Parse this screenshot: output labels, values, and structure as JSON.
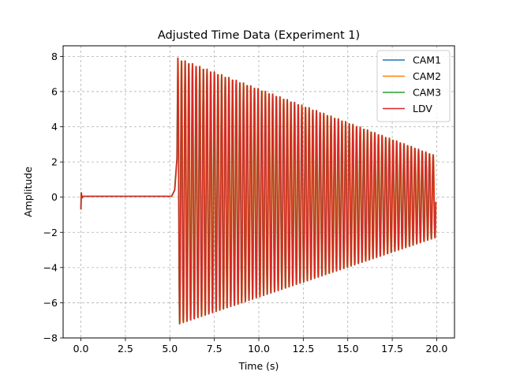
{
  "chart_data": {
    "type": "line",
    "title": "Adjusted Time Data (Experiment 1)",
    "xlabel": "Time (s)",
    "ylabel": "Amplitude",
    "xlim": [
      -1.0,
      21.0
    ],
    "ylim": [
      -8.0,
      8.6
    ],
    "x_ticks": [
      0.0,
      2.5,
      5.0,
      7.5,
      10.0,
      12.5,
      15.0,
      17.5,
      20.0
    ],
    "x_tick_labels": [
      "0.0",
      "2.5",
      "5.0",
      "7.5",
      "10.0",
      "12.5",
      "15.0",
      "17.5",
      "20.0"
    ],
    "y_ticks": [
      -8,
      -6,
      -4,
      -2,
      0,
      2,
      4,
      6,
      8
    ],
    "y_tick_labels": [
      "−8",
      "−6",
      "−4",
      "−2",
      "0",
      "2",
      "4",
      "6",
      "8"
    ],
    "grid": true,
    "legend_position": "top-right",
    "signal": {
      "initial_transient_min": -0.7,
      "initial_transient_max": 0.25,
      "baseline": 0.05,
      "onset_time": 5.45,
      "end_time": 19.95,
      "oscillation_period": 0.205,
      "peak_max_at_onset": 7.9,
      "peak_min_at_onset": -7.25,
      "peak_max_at_end": 2.35,
      "peak_min_at_end": -2.3
    },
    "series": [
      {
        "name": "CAM1",
        "color": "#1f77b4"
      },
      {
        "name": "CAM2",
        "color": "#ff7f0e"
      },
      {
        "name": "CAM3",
        "color": "#2ca02c"
      },
      {
        "name": "LDV",
        "color": "#d62728"
      }
    ]
  }
}
